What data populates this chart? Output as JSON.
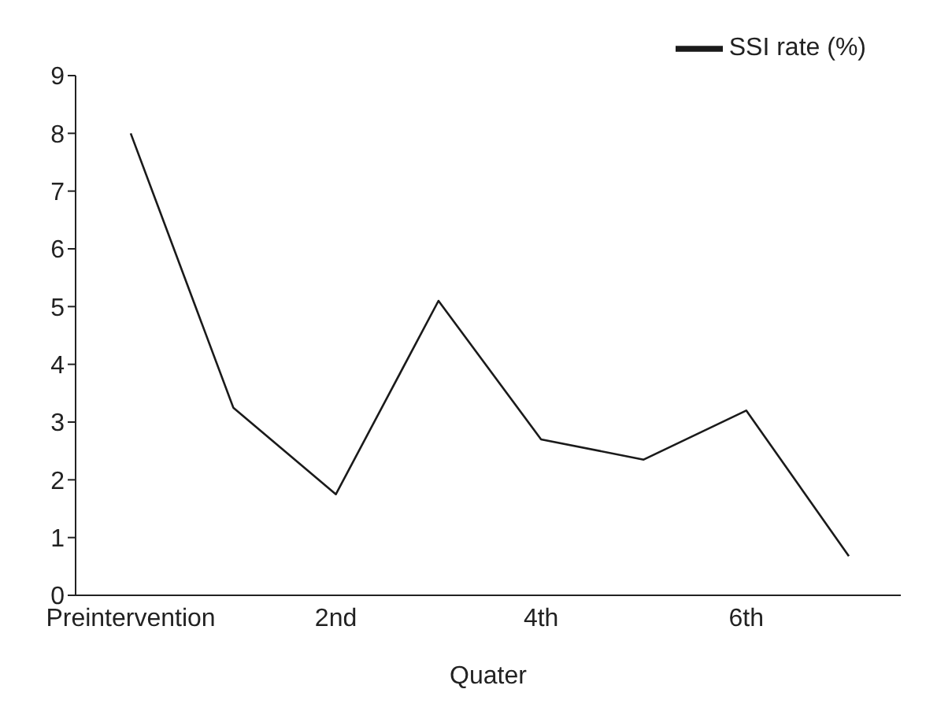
{
  "chart_data": {
    "type": "line",
    "xlabel": "Quater",
    "categories": [
      "Preintervention",
      null,
      "2nd",
      null,
      "4th",
      null,
      "6th",
      null
    ],
    "series": [
      {
        "name": "SSI rate (%)",
        "color": "#1a1a1a",
        "values": [
          8.0,
          3.25,
          1.75,
          5.1,
          2.7,
          2.35,
          3.2,
          0.68
        ]
      }
    ],
    "ylim": [
      0,
      9
    ],
    "yticks": [
      0,
      1,
      2,
      3,
      4,
      5,
      6,
      7,
      8,
      9
    ],
    "grid": false,
    "legend": "top right",
    "marker": "none",
    "line_style": "solid"
  }
}
